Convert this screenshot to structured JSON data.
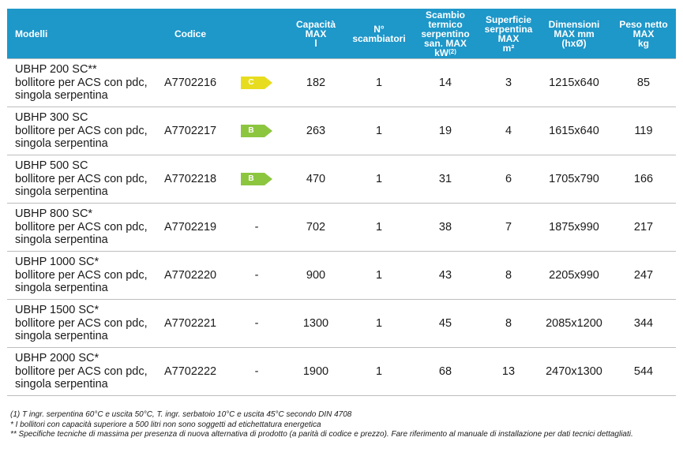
{
  "headers": {
    "model": "Modelli",
    "code": "Codice",
    "capacity": [
      "Capacità",
      "MAX",
      "l"
    ],
    "exchangers": [
      "N°",
      "scambiatori"
    ],
    "exchange": [
      "Scambio",
      "termico",
      "serpentino",
      "san. MAX kW"
    ],
    "exchange_sup": "(2)",
    "surface": [
      "Superficie",
      "serpentina",
      "MAX",
      "m²"
    ],
    "dimensions": [
      "Dimensioni",
      "MAX mm",
      "(hxØ)"
    ],
    "weight": [
      "Peso netto",
      "MAX",
      "kg"
    ]
  },
  "colors": {
    "header_bg": "#1e97c9",
    "class_c": "#e7dd1e",
    "class_b": "#8cc63f"
  },
  "rows": [
    {
      "model": "UBHP 200 SC**",
      "desc1": "bollitore per ACS con pdc,",
      "desc2": "singola serpentina",
      "code": "A7702216",
      "class": "C",
      "class_color": "#e7dd1e",
      "capacity": "182",
      "exchangers": "1",
      "exchange": "14",
      "surface": "3",
      "dimensions": "1215x640",
      "weight": "85"
    },
    {
      "model": "UBHP 300 SC",
      "desc1": "bollitore per ACS con pdc,",
      "desc2": "singola serpentina",
      "code": "A7702217",
      "class": "B",
      "class_color": "#8cc63f",
      "capacity": "263",
      "exchangers": "1",
      "exchange": "19",
      "surface": "4",
      "dimensions": "1615x640",
      "weight": "119"
    },
    {
      "model": "UBHP 500 SC",
      "desc1": "bollitore per ACS con pdc,",
      "desc2": "singola serpentina",
      "code": "A7702218",
      "class": "B",
      "class_color": "#8cc63f",
      "capacity": "470",
      "exchangers": "1",
      "exchange": "31",
      "surface": "6",
      "dimensions": "1705x790",
      "weight": "166"
    },
    {
      "model": "UBHP 800 SC*",
      "desc1": "bollitore per ACS con pdc,",
      "desc2": "singola serpentina",
      "code": "A7702219",
      "class": "-",
      "class_color": "",
      "capacity": "702",
      "exchangers": "1",
      "exchange": "38",
      "surface": "7",
      "dimensions": "1875x990",
      "weight": "217"
    },
    {
      "model": "UBHP 1000 SC*",
      "desc1": "bollitore per ACS con pdc,",
      "desc2": "singola serpentina",
      "code": "A7702220",
      "class": "-",
      "class_color": "",
      "capacity": "900",
      "exchangers": "1",
      "exchange": "43",
      "surface": "8",
      "dimensions": "2205x990",
      "weight": "247"
    },
    {
      "model": "UBHP 1500 SC*",
      "desc1": "bollitore per ACS con pdc,",
      "desc2": "singola serpentina",
      "code": "A7702221",
      "class": "-",
      "class_color": "",
      "capacity": "1300",
      "exchangers": "1",
      "exchange": "45",
      "surface": "8",
      "dimensions": "2085x1200",
      "weight": "344"
    },
    {
      "model": "UBHP 2000 SC*",
      "desc1": "bollitore per ACS con pdc,",
      "desc2": "singola serpentina",
      "code": "A7702222",
      "class": "-",
      "class_color": "",
      "capacity": "1900",
      "exchangers": "1",
      "exchange": "68",
      "surface": "13",
      "dimensions": "2470x1300",
      "weight": "544"
    }
  ],
  "notes": [
    "(1) T ingr. serpentina 60°C e uscita 50°C, T. ingr. serbatoio 10°C e uscita 45°C secondo DIN 4708",
    "* I bollitori con capacità superiore a 500 litri non sono soggetti ad etichettatura energetica",
    "** Specifiche tecniche di massima per presenza di nuova alternativa di prodotto (a parità di codice e prezzo). Fare riferimento al manuale di installazione per dati tecnici dettagliati."
  ]
}
